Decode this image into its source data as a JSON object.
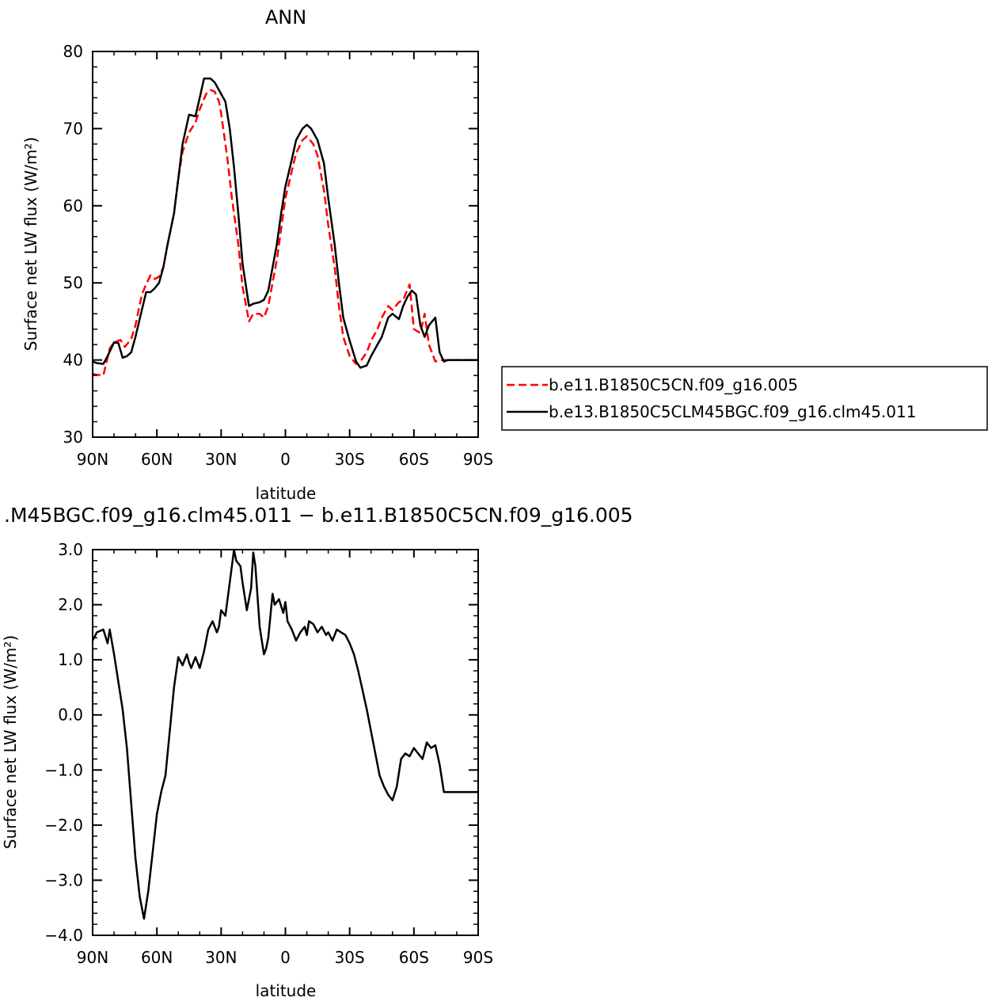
{
  "chart_data": [
    {
      "type": "line",
      "title": "ANN",
      "xlabel": "latitude",
      "ylabel": "Surface net LW flux (W/m²)",
      "xlim": [
        90,
        -90
      ],
      "ylim": [
        30,
        80
      ],
      "x_ticks": [
        90,
        60,
        30,
        0,
        -30,
        -60,
        -90
      ],
      "x_tick_labels": [
        "90N",
        "60N",
        "30N",
        "0",
        "30S",
        "60S",
        "90S"
      ],
      "y_ticks": [
        30,
        40,
        50,
        60,
        70,
        80
      ],
      "y_tick_labels": [
        "30",
        "40",
        "50",
        "60",
        "70",
        "80"
      ],
      "legend_position": "right",
      "series": [
        {
          "name": "b.e11.B1850C5CN.f09_g16.005",
          "color": "#ff0000",
          "dash": "dashed",
          "x": [
            90,
            88,
            85,
            82,
            80,
            77,
            75,
            72,
            70,
            67,
            65,
            63,
            61,
            59,
            57,
            55,
            52,
            50,
            48,
            45,
            42,
            40,
            37,
            35,
            33,
            31,
            30,
            29,
            27,
            25,
            22,
            20,
            17,
            15,
            12,
            10,
            8,
            6,
            4,
            2,
            0,
            -3,
            -5,
            -8,
            -10,
            -13,
            -15,
            -18,
            -20,
            -23,
            -25,
            -27,
            -30,
            -33,
            -35,
            -38,
            -40,
            -43,
            -45,
            -48,
            -50,
            -53,
            -55,
            -58,
            -60,
            -63,
            -65,
            -67,
            -70,
            -72,
            -75,
            -77,
            -79,
            -80,
            -82,
            -85,
            -87,
            -88,
            -90
          ],
          "y": [
            38.2,
            38.1,
            38.0,
            41.5,
            42.3,
            42.6,
            41.7,
            42.7,
            44.5,
            48.5,
            49.8,
            51.0,
            50.5,
            50.8,
            52.0,
            55.0,
            59.0,
            63.5,
            67.0,
            69.5,
            70.8,
            72.5,
            74.5,
            75.0,
            74.8,
            73.5,
            72.0,
            70.0,
            66.0,
            61.0,
            55.0,
            49.5,
            45.0,
            46.0,
            46.0,
            45.5,
            47.0,
            50.0,
            53.0,
            57.0,
            61.0,
            64.5,
            66.8,
            68.5,
            69.0,
            68.0,
            66.5,
            62.0,
            57.5,
            52.0,
            47.0,
            43.0,
            40.5,
            39.5,
            39.8,
            41.0,
            42.5,
            44.0,
            45.5,
            47.0,
            46.5,
            47.5,
            47.8,
            49.8,
            44.0,
            43.5,
            46.0,
            42.0,
            39.8,
            40,
            40,
            40,
            40,
            40,
            40,
            40,
            40,
            40,
            40
          ],
          "note_visible_range": [
            90,
            -90
          ]
        },
        {
          "name": "b.e13.B1850C5CLM45BGC.f09_g16.clm45.011",
          "color": "#000000",
          "dash": "solid",
          "x": [
            90,
            88,
            85,
            83,
            80,
            78,
            76,
            74,
            72,
            70,
            67,
            65,
            63,
            61,
            59,
            57,
            55,
            52,
            50,
            48,
            45,
            42,
            40,
            38,
            35,
            33,
            31,
            30,
            28,
            26,
            24,
            22,
            20,
            17,
            15,
            12,
            10,
            8,
            6,
            4,
            2,
            0,
            -3,
            -5,
            -8,
            -10,
            -12,
            -15,
            -18,
            -20,
            -23,
            -25,
            -27,
            -30,
            -33,
            -35,
            -38,
            -40,
            -43,
            -45,
            -48,
            -50,
            -53,
            -55,
            -57,
            -59,
            -61,
            -63,
            -65,
            -67,
            -70,
            -72,
            -74,
            -76,
            -78,
            -80,
            -82,
            -85,
            -87,
            -90
          ],
          "y": [
            39.8,
            39.6,
            39.5,
            40.5,
            42.3,
            42.2,
            40.3,
            40.5,
            41.0,
            43.0,
            46.5,
            48.8,
            48.8,
            49.3,
            50.0,
            52.0,
            55.0,
            59.0,
            63.5,
            68.0,
            71.8,
            71.6,
            74.0,
            76.5,
            76.5,
            76.0,
            75.0,
            74.5,
            73.5,
            70.0,
            65.0,
            59.0,
            52.5,
            47.0,
            47.3,
            47.5,
            47.8,
            49.0,
            52.0,
            55.0,
            59.0,
            62.5,
            66.0,
            68.5,
            70.0,
            70.5,
            70.0,
            68.5,
            65.5,
            61.0,
            55.0,
            50.0,
            45.5,
            42.5,
            39.8,
            39.0,
            39.3,
            40.5,
            42.0,
            43.0,
            45.5,
            46.0,
            45.3,
            47.0,
            48.2,
            49.0,
            48.5,
            44.5,
            43.0,
            44.5,
            45.5,
            41.0,
            39.8,
            40,
            40,
            40,
            40,
            40,
            40,
            40
          ],
          "note_visible_range": [
            90,
            -90
          ]
        }
      ]
    },
    {
      "type": "line",
      "title": ".M45BGC.f09_g16.clm45.011 − b.e11.B1850C5CN.f09_g16.005",
      "xlabel": "latitude",
      "ylabel": "Surface net LW flux (W/m²)",
      "xlim": [
        90,
        -90
      ],
      "ylim": [
        -4.0,
        3.0
      ],
      "x_ticks": [
        90,
        60,
        30,
        0,
        -30,
        -60,
        -90
      ],
      "x_tick_labels": [
        "90N",
        "60N",
        "30N",
        "0",
        "30S",
        "60S",
        "90S"
      ],
      "y_ticks": [
        -4.0,
        -3.0,
        -2.0,
        -1.0,
        0.0,
        1.0,
        2.0,
        3.0
      ],
      "y_tick_labels": [
        "−4.0",
        "−3.0",
        "−2.0",
        "−1.0",
        "0.0",
        "1.0",
        "2.0",
        "3.0"
      ],
      "series": [
        {
          "name": "",
          "color": "#000000",
          "dash": "solid",
          "x": [
            90,
            88,
            85,
            83,
            82,
            80,
            78,
            76,
            74,
            72,
            70,
            68,
            66,
            64,
            62,
            60,
            58,
            56,
            54,
            52,
            50,
            48,
            46,
            45,
            44,
            42,
            40,
            38,
            36,
            34,
            32,
            31,
            30,
            28,
            26,
            25,
            24,
            23,
            22,
            21,
            20,
            18,
            16,
            15,
            14,
            12,
            10,
            9,
            8,
            6,
            5,
            3,
            1,
            0,
            -1,
            -3,
            -5,
            -7,
            -9,
            -10,
            -11,
            -13,
            -15,
            -17,
            -19,
            -20,
            -22,
            -24,
            -26,
            -28,
            -30,
            -32,
            -34,
            -36,
            -38,
            -40,
            -42,
            -44,
            -46,
            -48,
            -50,
            -52,
            -54,
            -56,
            -58,
            -60,
            -62,
            -64,
            -66,
            -68,
            -70,
            -72,
            -74,
            -76,
            -78,
            -80,
            -82,
            -84,
            -86,
            -88,
            -90
          ],
          "y": [
            1.35,
            1.5,
            1.55,
            1.3,
            1.55,
            1.1,
            0.6,
            0.1,
            -0.6,
            -1.6,
            -2.6,
            -3.3,
            -3.7,
            -3.2,
            -2.5,
            -1.8,
            -1.4,
            -1.1,
            -0.3,
            0.5,
            1.05,
            0.9,
            1.1,
            0.95,
            0.85,
            1.05,
            0.85,
            1.15,
            1.55,
            1.7,
            1.5,
            1.6,
            1.9,
            1.8,
            2.4,
            2.7,
            3.0,
            2.8,
            2.75,
            2.7,
            2.4,
            1.9,
            2.3,
            2.95,
            2.7,
            1.6,
            1.1,
            1.2,
            1.4,
            2.2,
            2.0,
            2.1,
            1.85,
            2.05,
            1.7,
            1.55,
            1.35,
            1.5,
            1.6,
            1.45,
            1.7,
            1.65,
            1.5,
            1.6,
            1.45,
            1.5,
            1.35,
            1.55,
            1.5,
            1.45,
            1.3,
            1.1,
            0.8,
            0.45,
            0.1,
            -0.3,
            -0.7,
            -1.1,
            -1.3,
            -1.45,
            -1.55,
            -1.3,
            -0.8,
            -0.7,
            -0.75,
            -0.6,
            -0.7,
            -0.8,
            -0.5,
            -0.6,
            -0.55,
            -0.9,
            -1.4,
            -1.4,
            -1.4,
            -1.4,
            -1.4,
            -1.4,
            -1.4,
            -1.4,
            -1.4
          ]
        }
      ]
    }
  ]
}
